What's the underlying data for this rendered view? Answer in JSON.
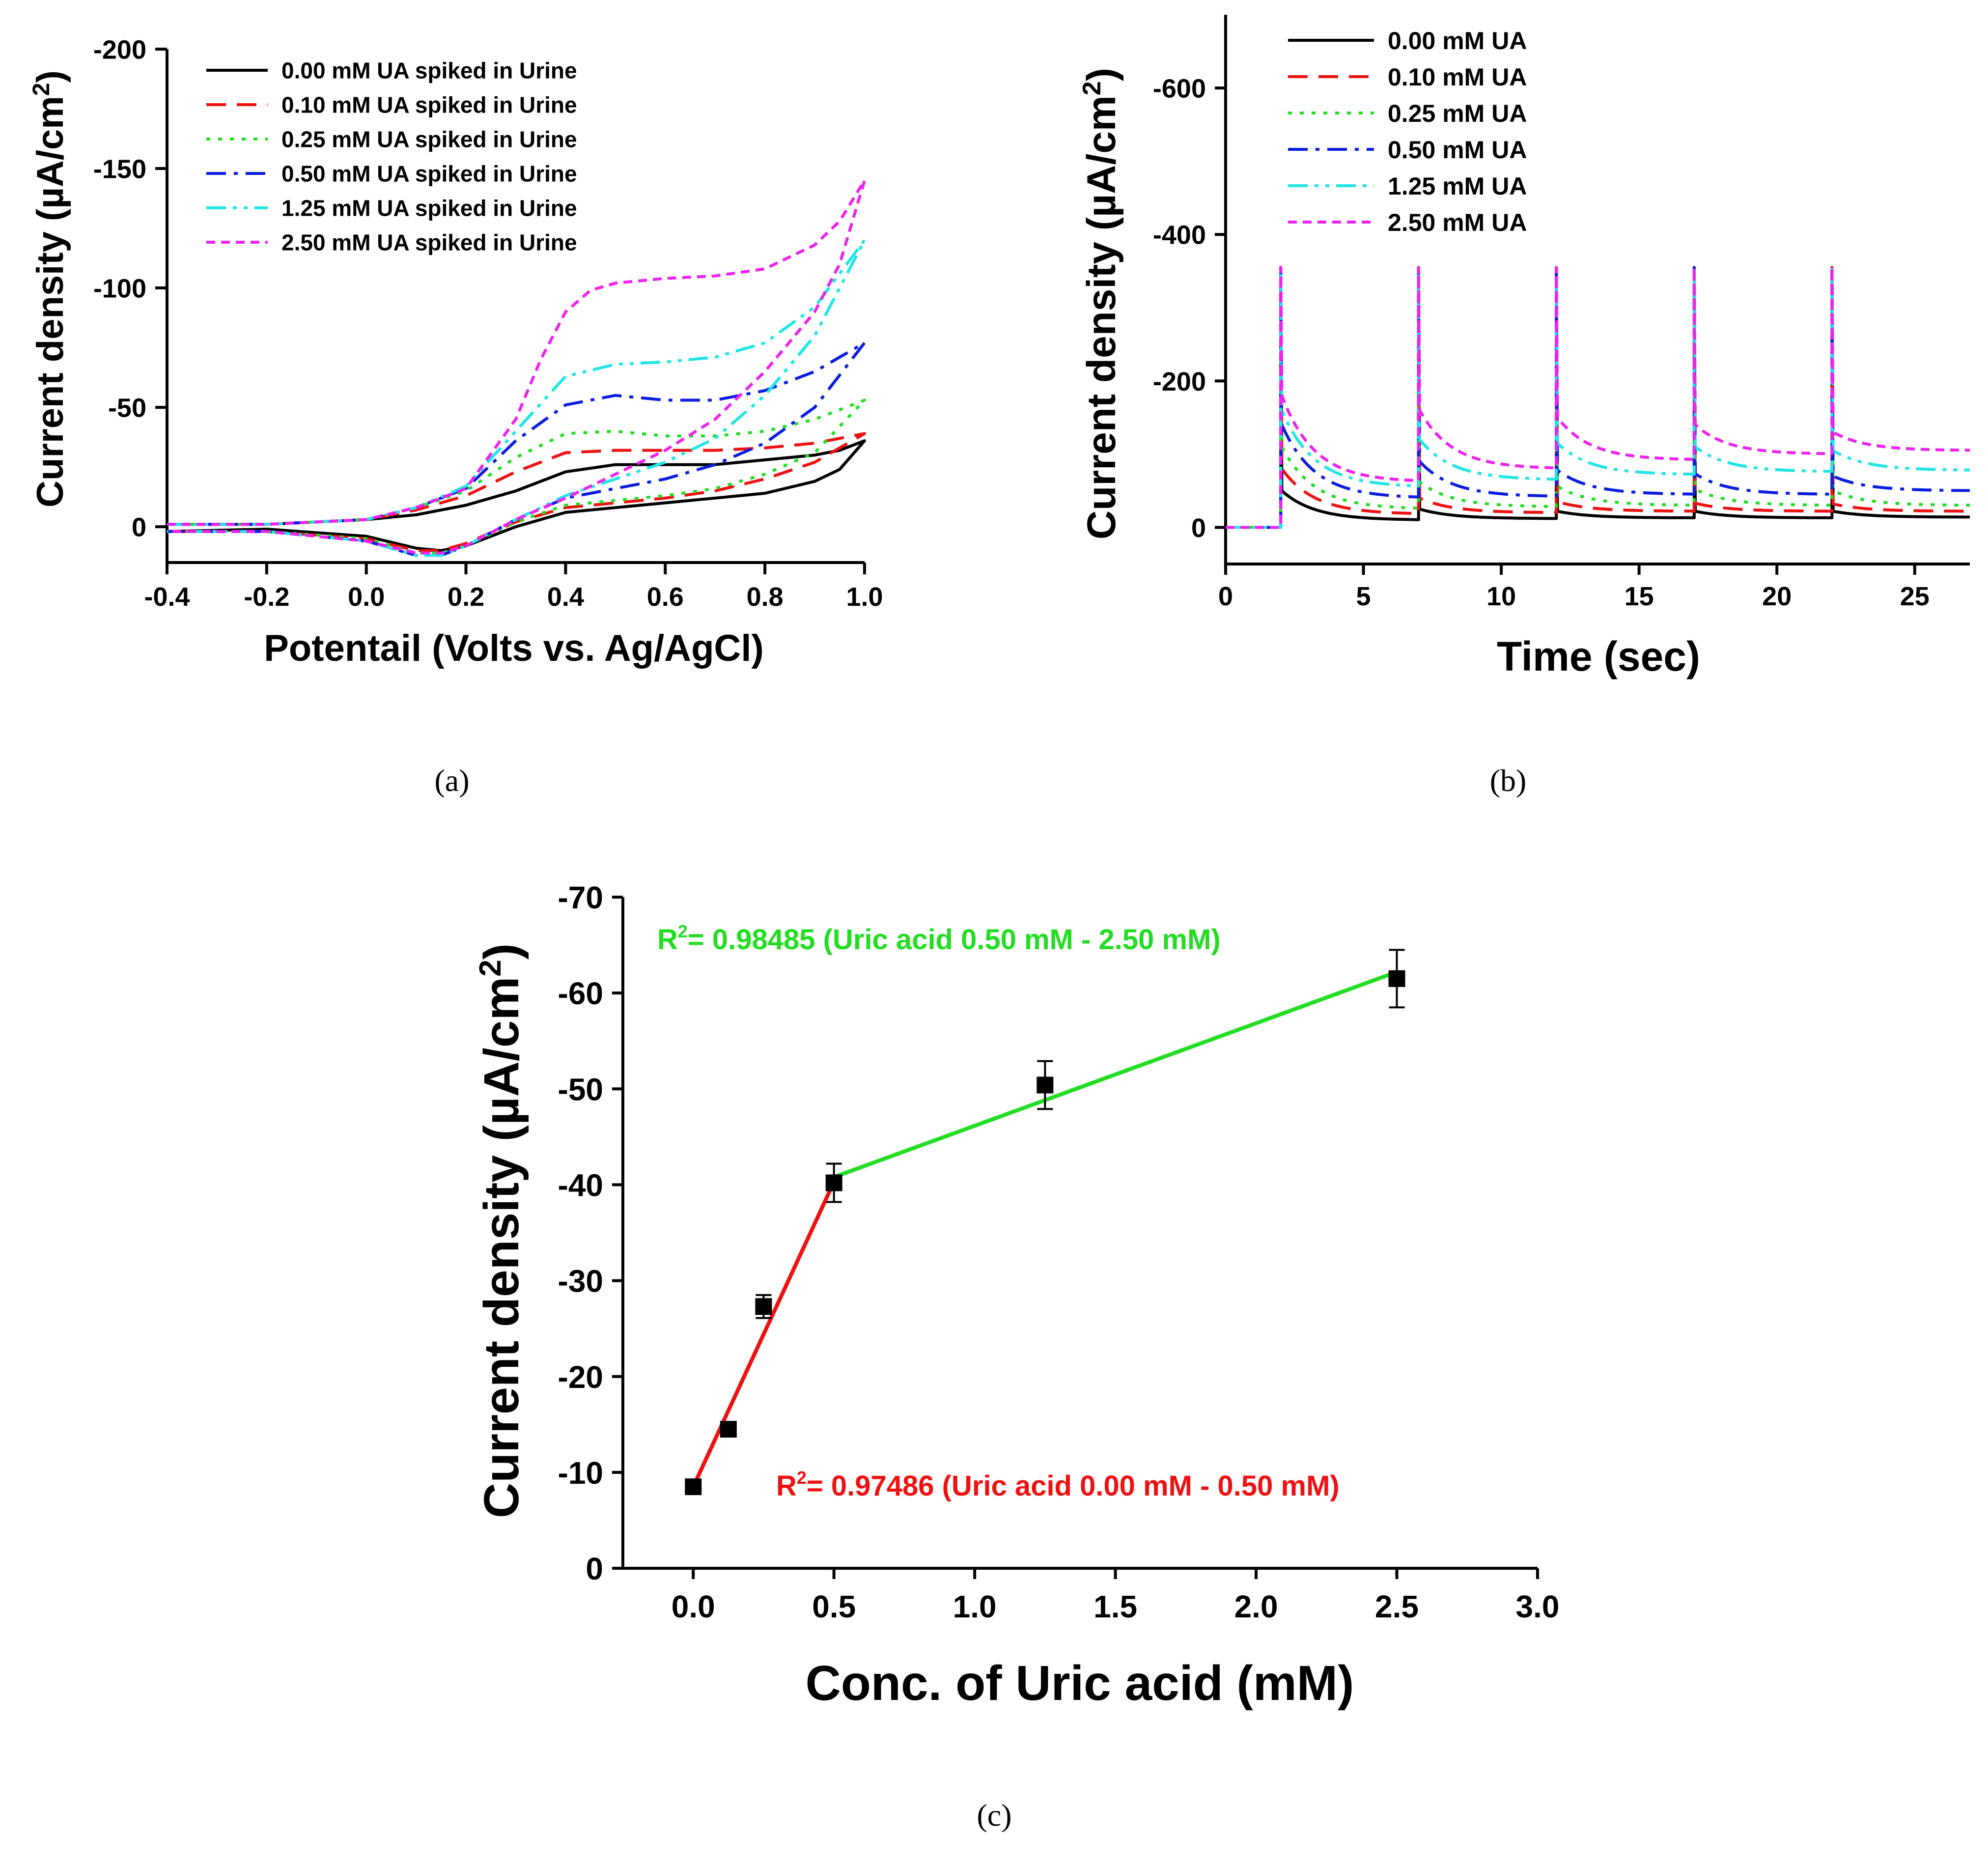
{
  "chart_data": [
    {
      "panel": "(a)",
      "type": "line",
      "xlabel": "Potentail (Volts vs. Ag/AgCl)",
      "ylabel": "Current density (µA/cm²)",
      "ylabel_main": "Current density (µA/cm",
      "ylabel_sup": "2",
      "ylabel_close": ")",
      "xlim": [
        -0.4,
        1.0
      ],
      "ylim": [
        15,
        -200
      ],
      "xticks": [
        -0.4,
        -0.2,
        0.0,
        0.2,
        0.4,
        0.6,
        0.8,
        1.0
      ],
      "xtick_labels": [
        "-0.4",
        "-0.2",
        "0.0",
        "0.2",
        "0.4",
        "0.6",
        "0.8",
        "1.0"
      ],
      "yticks": [
        0,
        -50,
        -100,
        -150,
        -200
      ],
      "ytick_labels": [
        "0",
        "-50",
        "-100",
        "-150",
        "-200"
      ],
      "grid": false,
      "legend_position": "top-right",
      "series": [
        {
          "name": "0.00 mM UA spiked in Urine",
          "color": "#000000",
          "dash": "solid",
          "x": [
            -0.4,
            -0.2,
            0.0,
            0.1,
            0.2,
            0.3,
            0.4,
            0.5,
            0.6,
            0.7,
            0.8,
            0.9,
            0.95,
            1.0,
            0.95,
            0.9,
            0.8,
            0.7,
            0.6,
            0.5,
            0.4,
            0.3,
            0.2,
            0.15,
            0.1,
            0.0,
            -0.2,
            -0.4
          ],
          "y": [
            -1,
            -1,
            -3,
            -5,
            -9,
            -15,
            -23,
            -26,
            -26,
            -26,
            -28,
            -30,
            -32,
            -36,
            -24,
            -19,
            -14,
            -12,
            -10,
            -8,
            -6,
            0,
            8,
            10,
            9,
            4,
            1,
            2
          ]
        },
        {
          "name": "0.10 mM UA spiked in Urine",
          "color": "#ee1111",
          "dash": "dashed",
          "x": [
            -0.4,
            -0.2,
            0.0,
            0.1,
            0.2,
            0.3,
            0.4,
            0.5,
            0.6,
            0.7,
            0.8,
            0.9,
            1.0,
            0.9,
            0.8,
            0.7,
            0.6,
            0.5,
            0.4,
            0.3,
            0.2,
            0.15,
            0.1,
            0.0,
            -0.2,
            -0.4
          ],
          "y": [
            -1,
            -1,
            -3,
            -7,
            -13,
            -23,
            -31,
            -32,
            -32,
            -32,
            -33,
            -35,
            -39,
            -27,
            -20,
            -15,
            -12,
            -10,
            -8,
            -2,
            7,
            10,
            10,
            5,
            2,
            2
          ]
        },
        {
          "name": "0.25 mM UA spiked in Urine",
          "color": "#22dd22",
          "dash": "dotted",
          "x": [
            -0.4,
            -0.2,
            0.0,
            0.1,
            0.2,
            0.3,
            0.4,
            0.5,
            0.6,
            0.7,
            0.8,
            0.9,
            1.0,
            0.9,
            0.8,
            0.7,
            0.6,
            0.5,
            0.4,
            0.3,
            0.2,
            0.15,
            0.1,
            0.0,
            -0.2,
            -0.4
          ],
          "y": [
            -1,
            -1,
            -3,
            -8,
            -15,
            -29,
            -39,
            -40,
            -38,
            -38,
            -40,
            -45,
            -53,
            -31,
            -22,
            -16,
            -13,
            -11,
            -9,
            -2,
            8,
            11,
            11,
            5,
            2,
            2
          ]
        },
        {
          "name": "0.50 mM UA spiked in Urine",
          "color": "#0b1ee0",
          "dash": "dashdot",
          "x": [
            -0.4,
            -0.2,
            0.0,
            0.1,
            0.2,
            0.3,
            0.4,
            0.5,
            0.6,
            0.7,
            0.8,
            0.9,
            1.0,
            0.9,
            0.8,
            0.7,
            0.6,
            0.5,
            0.4,
            0.3,
            0.2,
            0.15,
            0.1,
            0.0,
            -0.2,
            -0.4
          ],
          "y": [
            -1,
            -1,
            -3,
            -8,
            -16,
            -36,
            -51,
            -55,
            -53,
            -53,
            -57,
            -65,
            -77,
            -50,
            -35,
            -26,
            -20,
            -16,
            -12,
            -3,
            8,
            12,
            12,
            6,
            2,
            2
          ]
        },
        {
          "name": "1.25 mM UA spiked in Urine",
          "color": "#22e6e6",
          "dash": "dashdotdot",
          "x": [
            -0.4,
            -0.2,
            0.0,
            0.1,
            0.2,
            0.3,
            0.4,
            0.5,
            0.6,
            0.7,
            0.8,
            0.9,
            1.0,
            0.9,
            0.8,
            0.7,
            0.6,
            0.5,
            0.4,
            0.3,
            0.2,
            0.15,
            0.1,
            0.0,
            -0.2,
            -0.4
          ],
          "y": [
            -1,
            -1,
            -3,
            -8,
            -17,
            -40,
            -63,
            -68,
            -69,
            -71,
            -77,
            -92,
            -120,
            -80,
            -55,
            -37,
            -27,
            -20,
            -13,
            -3,
            8,
            12,
            12,
            6,
            2,
            2
          ]
        },
        {
          "name": "2.50 mM UA spiked in Urine",
          "color": "#ee22ee",
          "dash": "shortdash",
          "x": [
            -0.4,
            -0.2,
            0.0,
            0.1,
            0.2,
            0.3,
            0.35,
            0.4,
            0.45,
            0.5,
            0.6,
            0.7,
            0.8,
            0.9,
            0.95,
            1.0,
            0.95,
            0.9,
            0.8,
            0.7,
            0.6,
            0.5,
            0.4,
            0.3,
            0.2,
            0.15,
            0.1,
            0.0,
            -0.2,
            -0.4
          ],
          "y": [
            -1,
            -1,
            -3,
            -8,
            -16,
            -45,
            -70,
            -90,
            -99,
            -102,
            -104,
            -105,
            -108,
            -118,
            -128,
            -145,
            -110,
            -90,
            -65,
            -45,
            -32,
            -22,
            -12,
            -3,
            8,
            11,
            11,
            6,
            2,
            2
          ]
        }
      ]
    },
    {
      "panel": "(b)",
      "type": "line",
      "xlabel": "Time (sec)",
      "ylabel": "Current density (µA/cm²)",
      "ylabel_main": "Current density (µA/cm",
      "ylabel_sup": "2",
      "ylabel_close": ")",
      "xlim": [
        0,
        27
      ],
      "ylim": [
        50,
        -700
      ],
      "xticks": [
        0,
        5,
        10,
        15,
        20,
        25
      ],
      "xtick_labels": [
        "0",
        "5",
        "10",
        "15",
        "20",
        "25"
      ],
      "yticks": [
        0,
        -200,
        -400,
        -600
      ],
      "ytick_labels": [
        "0",
        "-200",
        "-400",
        "-600"
      ],
      "grid": false,
      "legend_position": "top-left",
      "pulse_times": [
        2,
        7,
        12,
        17,
        22
      ],
      "spike_peak": -355,
      "series": [
        {
          "name": "0.00 mM UA",
          "color": "#000000",
          "dash": "solid",
          "start": [
            50,
            25,
            22,
            22,
            22
          ],
          "end": [
            10,
            12,
            13,
            13,
            14
          ]
        },
        {
          "name": "0.10 mM UA",
          "color": "#ee1111",
          "dash": "dashed",
          "start": [
            80,
            40,
            35,
            33,
            32
          ],
          "end": [
            18,
            20,
            22,
            22,
            22
          ]
        },
        {
          "name": "0.25 mM UA",
          "color": "#22dd22",
          "dash": "dotted",
          "start": [
            110,
            62,
            56,
            52,
            50
          ],
          "end": [
            25,
            28,
            30,
            30,
            30
          ]
        },
        {
          "name": "0.50 mM UA",
          "color": "#0b1ee0",
          "dash": "dashdot",
          "start": [
            140,
            90,
            78,
            73,
            70
          ],
          "end": [
            40,
            42,
            45,
            45,
            50
          ]
        },
        {
          "name": "1.25 mM UA",
          "color": "#22e6e6",
          "dash": "dashdotdot",
          "start": [
            160,
            120,
            115,
            110,
            105
          ],
          "end": [
            55,
            65,
            72,
            76,
            78
          ]
        },
        {
          "name": "2.50 mM UA",
          "color": "#ee22ee",
          "dash": "shortdash",
          "start": [
            180,
            160,
            150,
            140,
            130
          ],
          "end": [
            62,
            80,
            92,
            100,
            105
          ]
        }
      ]
    },
    {
      "panel": "(c)",
      "type": "scatter",
      "xlabel": "Conc. of Uric acid (mM)",
      "ylabel": "Current density (µA/cm²)",
      "ylabel_main": "Current density (µA/cm",
      "ylabel_sup": "2",
      "ylabel_close": ")",
      "xlim": [
        -0.25,
        3.0
      ],
      "ylim": [
        0,
        -70
      ],
      "xticks": [
        0.0,
        0.5,
        1.0,
        1.5,
        2.0,
        2.5,
        3.0
      ],
      "xtick_labels": [
        "0.0",
        "0.5",
        "1.0",
        "1.5",
        "2.0",
        "2.5",
        "3.0"
      ],
      "yticks": [
        0,
        -10,
        -20,
        -30,
        -40,
        -50,
        -60,
        -70
      ],
      "ytick_labels": [
        "0",
        "-10",
        "-20",
        "-30",
        "-40",
        "-50",
        "-60",
        "-70"
      ],
      "grid": false,
      "points": {
        "x": [
          0.0,
          0.125,
          0.25,
          0.5,
          1.25,
          2.5
        ],
        "y": [
          -8.5,
          -14.5,
          -27.3,
          -40.2,
          -50.4,
          -61.5
        ],
        "err": [
          0.5,
          0.5,
          1.2,
          2.0,
          2.5,
          3.0
        ],
        "color": "#000000"
      },
      "fits": [
        {
          "color": "#ee1111",
          "x": [
            0.0,
            0.5
          ],
          "y": [
            -8.5,
            -40.3
          ]
        },
        {
          "color": "#22dd22",
          "x": [
            0.5,
            2.5
          ],
          "y": [
            -40.8,
            -62.2
          ]
        }
      ],
      "annotations": [
        {
          "color": "#22dd22",
          "prefix": "R",
          "sup": "2",
          "text": "= 0.98485 (Uric acid 0.50 mM - 2.50 mM)"
        },
        {
          "color": "#ee1111",
          "prefix": "R",
          "sup": "2",
          "text": "= 0.97486 (Uric acid 0.00 mM - 0.50 mM)"
        }
      ]
    }
  ]
}
